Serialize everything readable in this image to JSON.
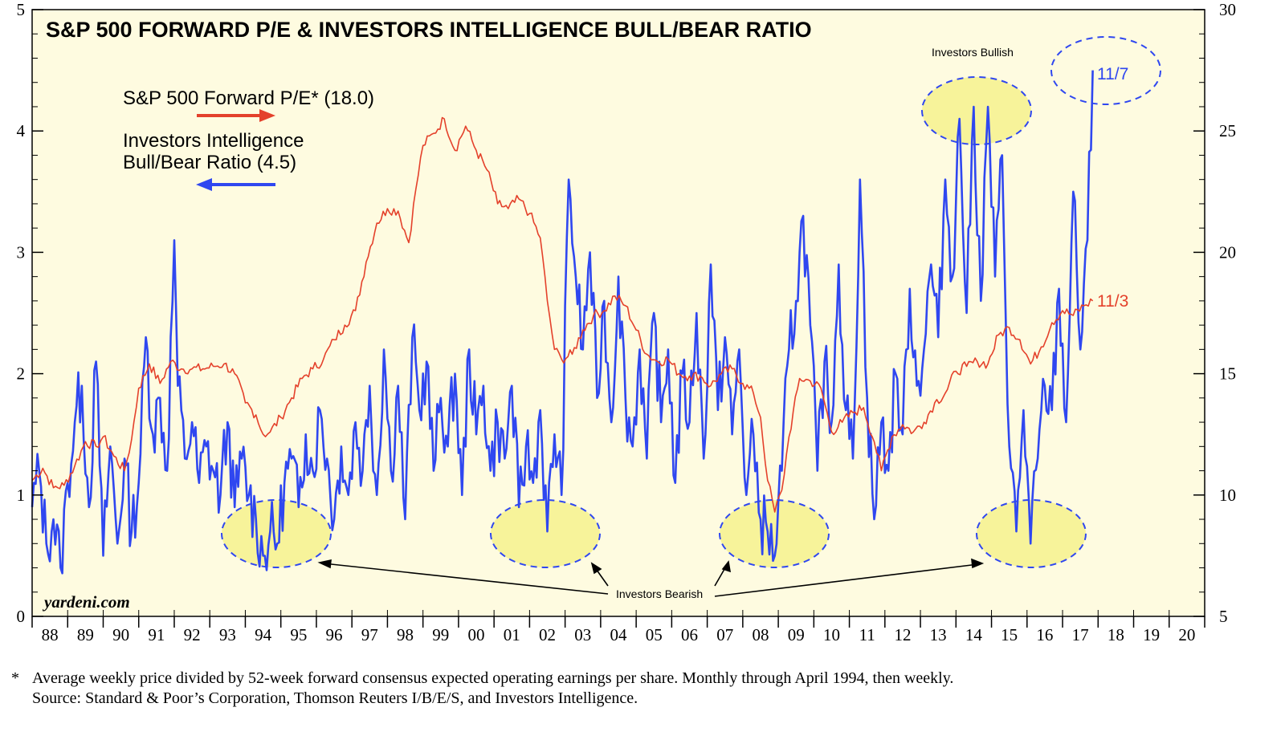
{
  "chart_data": {
    "type": "line",
    "title": "S&P 500 FORWARD P/E & INVESTORS INTELLIGENCE BULL/BEAR RATIO",
    "left_axis": {
      "ylim": [
        0,
        5
      ],
      "ticks": [
        "0",
        "1",
        "2",
        "3",
        "4",
        "5"
      ]
    },
    "right_axis": {
      "ylim": [
        5,
        30
      ],
      "ticks": [
        "5",
        "10",
        "15",
        "20",
        "25",
        "30"
      ]
    },
    "x_axis": {
      "xlim": [
        1988,
        2021
      ],
      "tick_labels": [
        "88",
        "89",
        "90",
        "91",
        "92",
        "93",
        "94",
        "95",
        "96",
        "97",
        "98",
        "99",
        "00",
        "01",
        "02",
        "03",
        "04",
        "05",
        "06",
        "07",
        "08",
        "09",
        "10",
        "11",
        "12",
        "13",
        "14",
        "15",
        "16",
        "17",
        "18",
        "19",
        "20"
      ]
    },
    "series": [
      {
        "name": "S&P 500 Forward P/E* (18.0)",
        "label_line1": "S&P 500 Forward P/E* (18.0)",
        "axis": "right",
        "color": "#e4412b",
        "end_label": "11/3",
        "x": [
          1988.0,
          1988.3,
          1988.6,
          1988.9,
          1989.2,
          1989.5,
          1989.8,
          1990.0,
          1990.3,
          1990.6,
          1990.8,
          1991.0,
          1991.3,
          1991.6,
          1991.9,
          1992.2,
          1992.5,
          1992.8,
          1993.1,
          1993.4,
          1993.7,
          1994.0,
          1994.3,
          1994.5,
          1994.7,
          1995.0,
          1995.3,
          1995.6,
          1995.9,
          1996.2,
          1996.5,
          1996.8,
          1997.1,
          1997.4,
          1997.7,
          1998.0,
          1998.3,
          1998.6,
          1998.8,
          1999.0,
          1999.3,
          1999.6,
          1999.9,
          2000.2,
          2000.5,
          2000.8,
          2001.1,
          2001.4,
          2001.7,
          2002.0,
          2002.3,
          2002.5,
          2002.7,
          2002.9,
          2003.2,
          2003.5,
          2003.8,
          2004.1,
          2004.4,
          2004.7,
          2005.0,
          2005.3,
          2005.6,
          2005.9,
          2006.2,
          2006.5,
          2006.8,
          2007.1,
          2007.4,
          2007.7,
          2008.0,
          2008.3,
          2008.5,
          2008.7,
          2008.9,
          2009.1,
          2009.3,
          2009.6,
          2009.9,
          2010.2,
          2010.5,
          2010.8,
          2011.1,
          2011.4,
          2011.7,
          2011.9,
          2012.2,
          2012.5,
          2012.8,
          2013.1,
          2013.4,
          2013.7,
          2014.0,
          2014.3,
          2014.6,
          2014.9,
          2015.2,
          2015.5,
          2015.8,
          2016.1,
          2016.4,
          2016.7,
          2017.0,
          2017.3,
          2017.6,
          2017.85
        ],
        "values": [
          10.6,
          11.1,
          10.3,
          10.4,
          11.2,
          12.2,
          12.0,
          12.4,
          11.6,
          11.0,
          12.3,
          14.4,
          15.4,
          14.6,
          15.5,
          15.2,
          15.2,
          15.2,
          15.3,
          15.4,
          15.0,
          13.8,
          13.3,
          12.5,
          12.6,
          13.2,
          14.0,
          14.8,
          15.2,
          15.6,
          16.4,
          17.0,
          17.6,
          19.6,
          21.2,
          21.8,
          21.7,
          20.4,
          22.6,
          24.4,
          24.9,
          25.5,
          24.2,
          25.2,
          24.2,
          23.4,
          22.0,
          21.8,
          22.2,
          21.6,
          20.6,
          18.0,
          16.0,
          15.6,
          15.8,
          16.8,
          17.4,
          17.6,
          18.2,
          17.8,
          16.8,
          15.8,
          15.5,
          15.6,
          15.0,
          14.9,
          14.9,
          14.5,
          15.0,
          15.2,
          14.6,
          14.2,
          13.2,
          10.6,
          9.3,
          10.2,
          12.4,
          14.8,
          14.7,
          14.4,
          12.6,
          13.0,
          13.4,
          13.6,
          12.2,
          11.0,
          12.4,
          12.9,
          12.6,
          13.0,
          13.8,
          14.2,
          15.1,
          15.3,
          15.5,
          15.4,
          16.6,
          16.9,
          16.4,
          15.4,
          16.1,
          17.1,
          17.6,
          17.4,
          17.8,
          18.0
        ]
      },
      {
        "name": "Investors Intelligence Bull/Bear Ratio (4.5)",
        "label_line1": "Investors Intelligence",
        "label_line2": "Bull/Bear Ratio (4.5)",
        "axis": "left",
        "color": "#2f47f0",
        "end_label": "11/7",
        "x": [
          1988.0,
          1988.2,
          1988.4,
          1988.6,
          1988.8,
          1989.0,
          1989.2,
          1989.4,
          1989.6,
          1989.8,
          1990.0,
          1990.2,
          1990.4,
          1990.6,
          1990.8,
          1991.0,
          1991.2,
          1991.4,
          1991.6,
          1991.8,
          1992.0,
          1992.1,
          1992.3,
          1992.5,
          1992.7,
          1992.9,
          1993.1,
          1993.3,
          1993.5,
          1993.7,
          1993.9,
          1994.1,
          1994.3,
          1994.5,
          1994.7,
          1994.9,
          1995.1,
          1995.3,
          1995.5,
          1995.7,
          1995.9,
          1996.1,
          1996.3,
          1996.5,
          1996.7,
          1996.9,
          1997.1,
          1997.3,
          1997.5,
          1997.7,
          1997.9,
          1998.1,
          1998.3,
          1998.5,
          1998.7,
          1998.9,
          1999.1,
          1999.3,
          1999.5,
          1999.7,
          1999.9,
          2000.1,
          2000.3,
          2000.5,
          2000.7,
          2000.9,
          2001.1,
          2001.3,
          2001.5,
          2001.7,
          2001.9,
          2002.1,
          2002.3,
          2002.5,
          2002.7,
          2002.9,
          2003.1,
          2003.3,
          2003.5,
          2003.7,
          2003.9,
          2004.1,
          2004.3,
          2004.5,
          2004.7,
          2004.9,
          2005.1,
          2005.3,
          2005.5,
          2005.7,
          2005.9,
          2006.1,
          2006.3,
          2006.5,
          2006.7,
          2006.9,
          2007.1,
          2007.3,
          2007.5,
          2007.7,
          2007.9,
          2008.1,
          2008.3,
          2008.5,
          2008.7,
          2008.9,
          2009.1,
          2009.3,
          2009.5,
          2009.7,
          2009.9,
          2010.1,
          2010.3,
          2010.5,
          2010.7,
          2010.9,
          2011.1,
          2011.3,
          2011.5,
          2011.7,
          2011.9,
          2012.1,
          2012.3,
          2012.5,
          2012.7,
          2012.9,
          2013.1,
          2013.3,
          2013.5,
          2013.7,
          2013.9,
          2014.1,
          2014.3,
          2014.5,
          2014.7,
          2014.9,
          2015.1,
          2015.3,
          2015.5,
          2015.7,
          2015.9,
          2016.1,
          2016.3,
          2016.5,
          2016.7,
          2016.9,
          2017.1,
          2017.3,
          2017.5,
          2017.7,
          2017.85
        ],
        "values": [
          0.9,
          1.2,
          0.6,
          0.8,
          0.4,
          1.1,
          1.6,
          1.9,
          0.9,
          2.1,
          0.5,
          1.4,
          0.6,
          1.3,
          0.7,
          1.1,
          2.3,
          1.5,
          1.8,
          1.2,
          3.1,
          1.9,
          1.3,
          1.6,
          1.1,
          1.4,
          1.2,
          1.0,
          1.6,
          0.9,
          1.3,
          1.0,
          0.8,
          0.5,
          0.7,
          0.6,
          1.1,
          1.3,
          0.9,
          1.5,
          1.2,
          1.7,
          1.3,
          0.8,
          1.4,
          1.0,
          1.6,
          1.2,
          1.9,
          1.0,
          2.2,
          1.2,
          1.9,
          0.8,
          2.3,
          1.7,
          2.1,
          1.2,
          1.8,
          1.4,
          2.0,
          1.0,
          2.2,
          1.5,
          1.9,
          1.2,
          1.6,
          1.3,
          1.9,
          0.9,
          1.4,
          1.1,
          1.7,
          0.7,
          1.5,
          1.0,
          3.6,
          2.8,
          2.2,
          3.0,
          1.8,
          2.6,
          1.6,
          2.8,
          1.8,
          1.4,
          2.2,
          1.3,
          2.5,
          1.6,
          2.2,
          1.1,
          2.0,
          1.6,
          2.5,
          1.3,
          2.9,
          1.7,
          2.3,
          1.5,
          2.2,
          1.0,
          1.5,
          0.8,
          0.7,
          0.5,
          1.2,
          2.2,
          2.6,
          3.3,
          2.4,
          1.2,
          2.1,
          1.6,
          2.9,
          1.7,
          1.3,
          3.6,
          1.8,
          0.8,
          1.6,
          1.2,
          2.0,
          1.5,
          2.7,
          1.9,
          2.2,
          2.9,
          2.3,
          3.6,
          2.8,
          4.1,
          2.5,
          4.2,
          2.6,
          4.2,
          2.8,
          3.8,
          1.4,
          0.7,
          1.7,
          0.6,
          1.3,
          1.9,
          1.7,
          2.7,
          1.6,
          3.5,
          2.2,
          3.1,
          4.5
        ]
      }
    ],
    "annotations": {
      "bullish": "Investors Bullish",
      "bearish": "Investors Bearish",
      "brand": "yardeni.com"
    },
    "footnote": {
      "marker": "*",
      "line1": "Average weekly price divided by 52-week forward consensus expected operating earnings per share. Monthly through April 1994, then weekly.",
      "line2": "Source: Standard & Poor’s Corporation, Thomson Reuters I/B/E/S, and Investors Intelligence."
    },
    "colors": {
      "plot_bg": "#fefbe0",
      "highlight": "#f7f39a",
      "ellipse_stroke": "#2f47f0"
    }
  }
}
